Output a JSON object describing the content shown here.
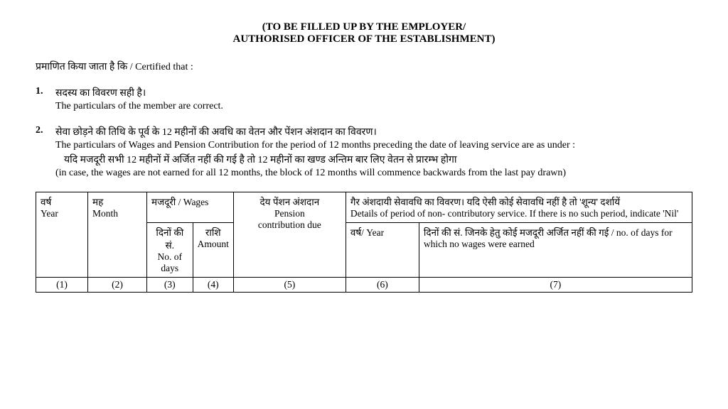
{
  "header": {
    "line1": "(TO BE FILLED UP BY THE EMPLOYER/",
    "line2": "AUTHORISED OFFICER OF THE ESTABLISHMENT)"
  },
  "intro": "प्रमाणित किया जाता है कि / Certified that :",
  "item1": {
    "num": "1.",
    "hi": "सदस्य का विवरण सही है।",
    "en": "The particulars of the member are correct."
  },
  "item2": {
    "num": "2.",
    "hi": "सेवा छोड़ने की तिथि के पूर्व के 12 महीनों की अवधि का वेतन और पेंशन अंशदान का विवरण।",
    "en": "The particulars of Wages and Pension Contribution for the period of 12 months preceding the date of leaving service are as under :",
    "note_hi": "यदि मजदूरी सभी 12 महीनों में अर्जित नहीं की गई है तो 12 महीनों का खण्ड अन्तिम बार लिए वेतन से प्रारम्भ होगा",
    "note_en": "(in case, the wages are not earned for all 12 months, the block of 12 months will commence backwards from the last pay drawn)"
  },
  "table": {
    "row1": {
      "c1": "वर्ष\nYear",
      "c2": "मह\nMonth",
      "c3": "मजदूरी / Wages",
      "c4": "देय पेंशन अंशदान\nPension\ncontribution due",
      "c5": "गैर अंशदायी सेवावधि का विवरण। यदि ऐसी कोई सेवावधि नहीं है तो 'शून्य' दर्शायें\nDetails of period of non- contributory service. If there is no such period, indicate 'Nil'"
    },
    "row2": {
      "c3a": "दिनों की सं.\nNo. of days",
      "c3b": "राशि\nAmount",
      "c5a": "वर्ष/ Year",
      "c5b": "दिनों की सं. जिनके हेतु कोई मजदूरी अर्जित नहीं की गई / no. of days for which no wages were earned"
    },
    "nums": [
      "(1)",
      "(2)",
      "(3)",
      "(4)",
      "(5)",
      "(6)",
      "(7)"
    ]
  }
}
